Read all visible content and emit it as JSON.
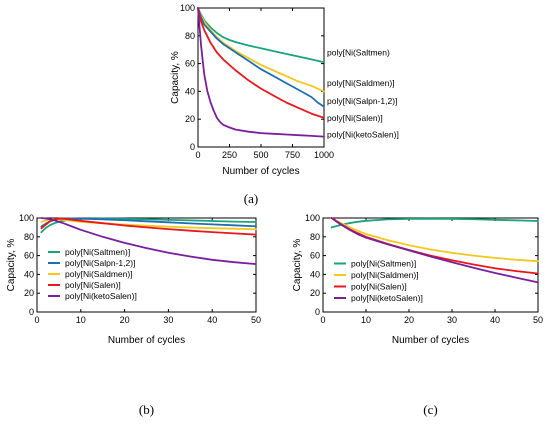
{
  "chart_data": [
    {
      "id": "a",
      "type": "line",
      "panel_label": "(a)",
      "xlabel": "Number of cycles",
      "ylabel": "Capacity, %",
      "xlim": [
        0,
        1000
      ],
      "ylim": [
        0,
        100
      ],
      "xticks": [
        0,
        250,
        500,
        750,
        1000
      ],
      "yticks": [
        0,
        20,
        40,
        60,
        80,
        100
      ],
      "grid": false,
      "legend": "inline-right",
      "series": [
        {
          "name": "poly[Ni(Saltmen)",
          "color": "#1aa37a",
          "label_y": 68,
          "x": [
            0,
            25,
            50,
            100,
            150,
            200,
            250,
            300,
            400,
            500,
            600,
            700,
            800,
            900,
            1000
          ],
          "y": [
            100,
            95,
            91,
            86,
            82,
            79,
            77,
            75.5,
            73,
            71,
            69,
            67,
            65,
            63,
            61
          ]
        },
        {
          "name": "poly[Ni(Saldmen)]",
          "color": "#f2c81d",
          "label_y": 46,
          "x": [
            0,
            25,
            50,
            100,
            150,
            200,
            250,
            300,
            400,
            500,
            600,
            700,
            800,
            900,
            1000
          ],
          "y": [
            100,
            94,
            90,
            84,
            79,
            75,
            72,
            69,
            64,
            59,
            55,
            51,
            47,
            44,
            40
          ]
        },
        {
          "name": "poly[Ni(Salpn-1,2)]",
          "color": "#1f6db3",
          "label_y": 33,
          "x": [
            0,
            25,
            50,
            100,
            150,
            200,
            250,
            300,
            400,
            500,
            600,
            700,
            800,
            900,
            950,
            1000
          ],
          "y": [
            100,
            93,
            88,
            83,
            78,
            74,
            71,
            68,
            62,
            56,
            51,
            46,
            41,
            36,
            32,
            29
          ]
        },
        {
          "name": "poly[Ni(Salen)]",
          "color": "#e8171c",
          "label_y": 21,
          "x": [
            0,
            25,
            50,
            100,
            150,
            200,
            250,
            300,
            400,
            500,
            600,
            700,
            800,
            900,
            1000
          ],
          "y": [
            100,
            90,
            84,
            75,
            68,
            63,
            59,
            55,
            48,
            42,
            37,
            32,
            28,
            24,
            21
          ]
        },
        {
          "name": "poly[Ni(ketoSalen)]",
          "color": "#7a1f9c",
          "label_y": 9,
          "x": [
            0,
            25,
            50,
            75,
            100,
            125,
            150,
            175,
            200,
            250,
            300,
            400,
            500,
            600,
            700,
            800,
            900,
            1000
          ],
          "y": [
            100,
            72,
            52,
            40,
            32,
            26,
            21,
            18,
            16,
            14,
            12.5,
            11,
            10,
            9.5,
            9,
            8.5,
            8,
            7.5
          ]
        }
      ]
    },
    {
      "id": "b",
      "type": "line",
      "panel_label": "(b)",
      "xlabel": "Number of cycles",
      "ylabel": "Capacity, %",
      "xlim": [
        0,
        50
      ],
      "ylim": [
        0,
        100
      ],
      "xticks": [
        0,
        10,
        20,
        30,
        40,
        50
      ],
      "yticks": [
        0,
        20,
        40,
        60,
        80,
        100
      ],
      "grid": false,
      "legend": "bottom-left",
      "series": [
        {
          "name": "poly[Ni(Saltmen)]",
          "color": "#1aa37a",
          "x": [
            1,
            2,
            3,
            4,
            5,
            6,
            8,
            10,
            15,
            20,
            25,
            30,
            35,
            40,
            45,
            50
          ],
          "y": [
            85,
            89.5,
            92.5,
            94.5,
            96,
            97,
            98.5,
            99.2,
            99.5,
            99.2,
            98.7,
            98,
            97.4,
            96.8,
            96.2,
            95.7
          ]
        },
        {
          "name": "poly[Ni(Salpn-1,2)]",
          "color": "#1f6db3",
          "x": [
            1,
            2,
            3,
            4,
            5,
            6,
            8,
            10,
            15,
            20,
            25,
            30,
            35,
            40,
            45,
            50
          ],
          "y": [
            91,
            94,
            96.5,
            98,
            99,
            99.5,
            99.6,
            99.4,
            98.6,
            97.7,
            96.5,
            95.4,
            94.3,
            93.2,
            92.2,
            91.2
          ]
        },
        {
          "name": "poly[Ni(Saldmen)]",
          "color": "#f2c81d",
          "x": [
            1,
            2,
            3,
            4,
            5,
            6,
            8,
            10,
            15,
            20,
            25,
            30,
            35,
            40,
            45,
            50
          ],
          "y": [
            96,
            97.5,
            98.5,
            98.8,
            98.5,
            98,
            97,
            96,
            94.4,
            93,
            91.8,
            90.8,
            89.9,
            89.2,
            88.6,
            88
          ]
        },
        {
          "name": "poly[Ni(Salen)]",
          "color": "#e8171c",
          "x": [
            1,
            2,
            3,
            4,
            5,
            6,
            8,
            10,
            15,
            20,
            25,
            30,
            35,
            40,
            45,
            50
          ],
          "y": [
            89,
            93,
            96.5,
            98.5,
            99.3,
            99.3,
            98.2,
            97,
            94.5,
            92,
            90,
            88.2,
            86.5,
            85,
            83.6,
            82.3
          ]
        },
        {
          "name": "poly[Ni(ketoSalen)]",
          "color": "#7a1f9c",
          "x": [
            1,
            2,
            3,
            4,
            6,
            8,
            10,
            15,
            20,
            25,
            30,
            35,
            40,
            45,
            50
          ],
          "y": [
            100,
            99.5,
            98.7,
            97.5,
            94.5,
            91,
            87.5,
            80,
            73.5,
            68,
            63,
            59,
            55.5,
            53,
            51
          ]
        }
      ]
    },
    {
      "id": "c",
      "type": "line",
      "panel_label": "(c)",
      "xlabel": "Number of cycles",
      "ylabel": "Capacity, %",
      "xlim": [
        0,
        50
      ],
      "ylim": [
        0,
        100
      ],
      "xticks": [
        0,
        10,
        20,
        30,
        40,
        50
      ],
      "yticks": [
        0,
        20,
        40,
        60,
        80,
        100
      ],
      "grid": false,
      "legend": "bottom-left",
      "series": [
        {
          "name": "poly[Ni(Saltmen)]",
          "color": "#1aa37a",
          "x": [
            2,
            4,
            6,
            8,
            10,
            15,
            20,
            25,
            30,
            35,
            40,
            45,
            50
          ],
          "y": [
            90,
            92.5,
            94.5,
            96,
            97,
            98.5,
            99,
            99.2,
            99,
            98.7,
            98.1,
            97.5,
            96.8
          ]
        },
        {
          "name": "poly[Ni(Saldmen)]",
          "color": "#f2c81d",
          "x": [
            2,
            4,
            6,
            8,
            10,
            15,
            20,
            25,
            30,
            35,
            40,
            45,
            50
          ],
          "y": [
            100,
            95,
            90.5,
            86.5,
            83,
            76.5,
            71,
            66.5,
            63,
            60,
            57.5,
            55.5,
            54
          ]
        },
        {
          "name": "poly[Ni(Salen)]",
          "color": "#e8171c",
          "x": [
            2,
            4,
            6,
            8,
            10,
            15,
            20,
            25,
            30,
            35,
            40,
            45,
            50
          ],
          "y": [
            100,
            94,
            88.5,
            84,
            80,
            72.5,
            66,
            60,
            55,
            50.5,
            46.5,
            43.5,
            41
          ]
        },
        {
          "name": "poly[Ni(ketoSalen)]",
          "color": "#7a1f9c",
          "x": [
            2,
            4,
            6,
            8,
            10,
            15,
            20,
            25,
            30,
            35,
            40,
            45,
            50
          ],
          "y": [
            100,
            93.5,
            88,
            83,
            79,
            72,
            65.5,
            59,
            53,
            47,
            41.5,
            36.5,
            31.5
          ]
        }
      ]
    }
  ]
}
